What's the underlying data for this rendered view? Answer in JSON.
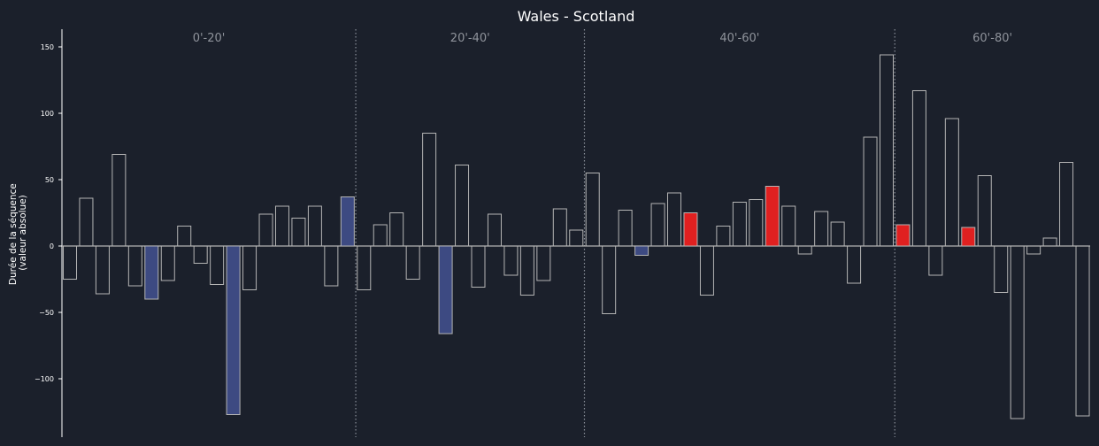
{
  "chart_data": {
    "type": "bar",
    "title": "Wales - Scotland",
    "ylabel_line1": "Durée de la séquence",
    "ylabel_line2": "(valeur absolue)",
    "xlabel": "",
    "ylim": [
      -143,
      163
    ],
    "yticks": [
      -100,
      -50,
      0,
      50,
      100,
      150
    ],
    "ytick_labels": [
      "−100",
      "−50",
      "0",
      "50",
      "100",
      "150"
    ],
    "period_labels": [
      "0'-20'",
      "20'-40'",
      "40'-60'",
      "60'-80'"
    ],
    "period_boundaries_after_bar": [
      17,
      31,
      50
    ],
    "colors": {
      "background": "#1b202b",
      "bar_outline": "#b4b4b4",
      "wales_highlight": "#3d4a82",
      "scotland_highlight": "#e02020",
      "separator": "#8a8f99"
    },
    "values": [
      -25,
      36,
      -36,
      69,
      -30,
      -40,
      -26,
      15,
      -13,
      -29,
      -127,
      -33,
      24,
      30,
      21,
      30,
      -30,
      37,
      -33,
      16,
      25,
      -25,
      85,
      -66,
      61,
      -31,
      24,
      -22,
      -37,
      -26,
      28,
      12,
      55,
      -51,
      27,
      -7,
      32,
      40,
      25,
      -37,
      15,
      33,
      35,
      45,
      30,
      -6,
      26,
      18,
      -28,
      82,
      144,
      16,
      117,
      -22,
      96,
      14,
      53,
      -35,
      -130,
      -6,
      6,
      63,
      -128
    ],
    "highlight": [
      "",
      "",
      "",
      "",
      "",
      "wales",
      "",
      "",
      "",
      "",
      "wales",
      "",
      "",
      "",
      "",
      "",
      "",
      "wales",
      "",
      "",
      "",
      "",
      "",
      "wales",
      "",
      "",
      "",
      "",
      "",
      "",
      "",
      "",
      "",
      "",
      "",
      "wales",
      "",
      "",
      "scotland",
      "",
      "",
      "",
      "",
      "scotland",
      "",
      "",
      "",
      "",
      "",
      "",
      "",
      "scotland",
      "",
      "",
      "",
      "scotland",
      "",
      "",
      "",
      "",
      "",
      "",
      ""
    ]
  }
}
